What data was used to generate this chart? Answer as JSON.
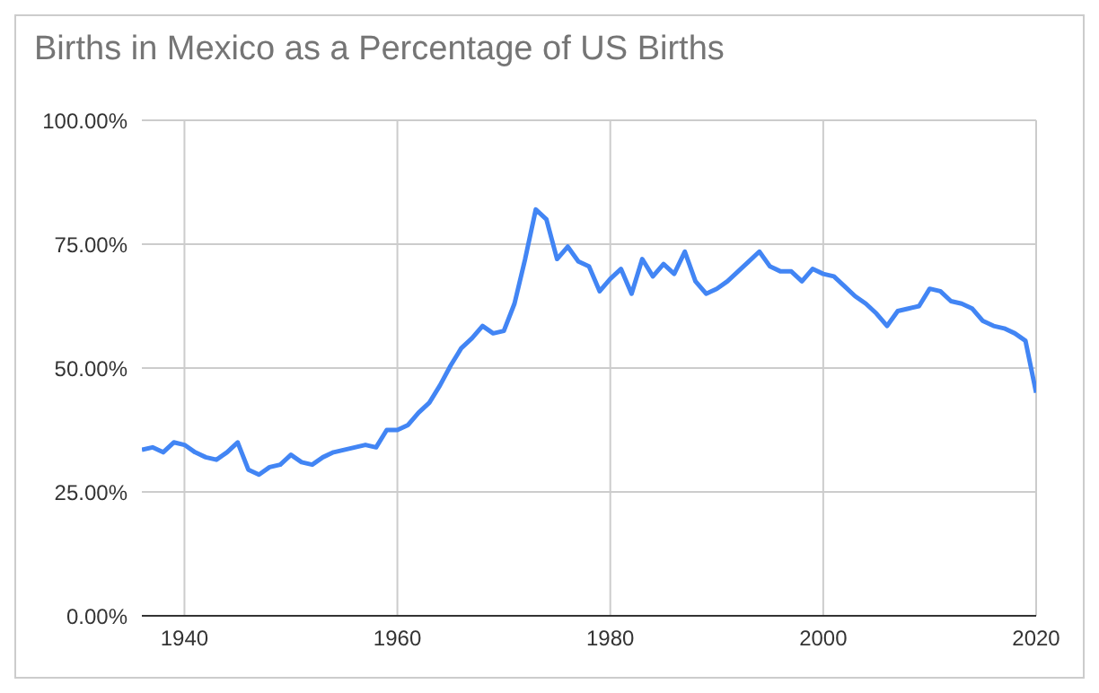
{
  "chart_data": {
    "type": "line",
    "title": "Births in Mexico as a Percentage of US Births",
    "x": [
      1936,
      1937,
      1938,
      1939,
      1940,
      1941,
      1942,
      1943,
      1944,
      1945,
      1946,
      1947,
      1948,
      1949,
      1950,
      1951,
      1952,
      1953,
      1954,
      1955,
      1956,
      1957,
      1958,
      1959,
      1960,
      1961,
      1962,
      1963,
      1964,
      1965,
      1966,
      1967,
      1968,
      1969,
      1970,
      1971,
      1972,
      1973,
      1974,
      1975,
      1976,
      1977,
      1978,
      1979,
      1980,
      1981,
      1982,
      1983,
      1984,
      1985,
      1986,
      1987,
      1988,
      1989,
      1990,
      1991,
      1992,
      1993,
      1994,
      1995,
      1996,
      1997,
      1998,
      1999,
      2000,
      2001,
      2002,
      2003,
      2004,
      2005,
      2006,
      2007,
      2008,
      2009,
      2010,
      2011,
      2012,
      2013,
      2014,
      2015,
      2016,
      2017,
      2018,
      2019,
      2020
    ],
    "series": [
      {
        "color": "#4285f4",
        "values": [
          33.5,
          34,
          33,
          35,
          34.5,
          33,
          32,
          31.5,
          33,
          35,
          29.5,
          28.5,
          30,
          30.5,
          32.5,
          31,
          30.5,
          32,
          33,
          33.5,
          34,
          34.5,
          34,
          37.5,
          37.5,
          38.5,
          41,
          43,
          46.5,
          50.5,
          54,
          56,
          58.5,
          57,
          57.5,
          63,
          72,
          82,
          80,
          72,
          74.5,
          71.5,
          70.5,
          65.5,
          68,
          70,
          65,
          72,
          68.5,
          71,
          69,
          73.5,
          67.5,
          65,
          66,
          67.5,
          69.5,
          71.5,
          73.5,
          70.5,
          69.5,
          69.5,
          67.5,
          70,
          69,
          68.5,
          66.5,
          64.5,
          63,
          61,
          58.5,
          61.5,
          62,
          62.5,
          66,
          65.5,
          63.5,
          63,
          62,
          59.5,
          58.5,
          58,
          57,
          55.5,
          45
        ]
      }
    ],
    "xlim": [
      1936,
      2020
    ],
    "xticks": [
      1940,
      1960,
      1980,
      2000,
      2020
    ],
    "ylim": [
      0,
      100
    ],
    "yticks": [
      {
        "value": 0,
        "label": "0.00%"
      },
      {
        "value": 25,
        "label": "25.00%"
      },
      {
        "value": 50,
        "label": "50.00%"
      },
      {
        "value": 75,
        "label": "75.00%"
      },
      {
        "value": 100,
        "label": "100.00%"
      }
    ],
    "grid": true,
    "legend": false,
    "marker": "none",
    "line_style": "solid"
  }
}
